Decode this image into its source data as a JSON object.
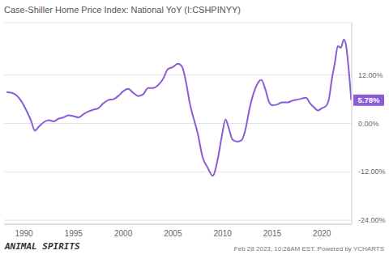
{
  "chart_data": {
    "type": "line",
    "title": "Case-Shiller Home Price Index: National YoY (I:CSHPINYY)",
    "footer": "Feb 28 2023, 10:28AM EST. Powered by YCHARTS",
    "logo": "ANIMAL SPIRITS",
    "x": [
      1988.25,
      1988.75,
      1989.25,
      1989.75,
      1990.25,
      1990.75,
      1991.1,
      1991.5,
      1992.0,
      1992.5,
      1993.0,
      1993.5,
      1994.0,
      1994.5,
      1995.0,
      1995.5,
      1996.0,
      1996.5,
      1997.0,
      1997.5,
      1998.0,
      1998.5,
      1999.0,
      1999.5,
      2000.0,
      2000.5,
      2001.0,
      2001.5,
      2002.0,
      2002.5,
      2003.0,
      2003.5,
      2004.0,
      2004.5,
      2005.0,
      2005.5,
      2005.9,
      2006.3,
      2006.7,
      2007.0,
      2007.5,
      2008.0,
      2008.5,
      2009.0,
      2009.5,
      2009.9,
      2010.3,
      2010.6,
      2011.0,
      2011.5,
      2011.9,
      2012.3,
      2012.7,
      2013.0,
      2013.5,
      2013.9,
      2014.3,
      2014.7,
      2015.0,
      2015.5,
      2016.0,
      2016.5,
      2017.0,
      2017.5,
      2018.0,
      2018.4,
      2018.8,
      2019.2,
      2019.6,
      2020.0,
      2020.4,
      2020.7,
      2021.0,
      2021.3,
      2021.6,
      2021.9,
      2022.2,
      2022.4,
      2022.6,
      2022.8,
      2022.95
    ],
    "series": [
      {
        "name": "Case-Shiller Home Price Index: National YoY",
        "color": "#8a5cd6",
        "values": [
          7.8,
          7.6,
          7.0,
          5.5,
          3.2,
          0.5,
          -1.8,
          -0.8,
          0.3,
          0.8,
          0.5,
          1.2,
          1.5,
          2.0,
          1.8,
          1.5,
          2.3,
          3.0,
          3.4,
          3.8,
          5.0,
          5.8,
          6.0,
          6.8,
          8.0,
          8.6,
          7.6,
          6.8,
          7.2,
          8.8,
          8.8,
          9.5,
          11.0,
          13.5,
          14.0,
          14.8,
          14.2,
          10.5,
          5.0,
          2.0,
          -2.5,
          -8.5,
          -11.0,
          -13.0,
          -9.0,
          -3.5,
          1.0,
          -1.0,
          -4.0,
          -4.5,
          -4.2,
          -1.5,
          3.5,
          6.5,
          9.8,
          10.8,
          8.5,
          5.2,
          4.5,
          4.7,
          5.2,
          5.2,
          5.6,
          5.9,
          6.2,
          6.4,
          5.0,
          4.0,
          3.2,
          3.8,
          4.3,
          6.0,
          11.0,
          15.0,
          19.2,
          18.8,
          20.8,
          19.8,
          15.8,
          10.5,
          5.78
        ]
      }
    ],
    "xlim": [
      1988,
      2023
    ],
    "xticks": [
      1990,
      1995,
      2000,
      2005,
      2010,
      2015,
      2020
    ],
    "ylim": [
      -25,
      25
    ],
    "yticks": [
      {
        "value": -24,
        "label": "-24.00%"
      },
      {
        "value": -12,
        "label": "-12.00%"
      },
      {
        "value": 0,
        "label": "0.00%"
      },
      {
        "value": 12,
        "label": "12.00%"
      }
    ],
    "grid": true,
    "annotations": [
      {
        "x": 2022.95,
        "y": 5.78,
        "label": "5.78%"
      }
    ]
  }
}
